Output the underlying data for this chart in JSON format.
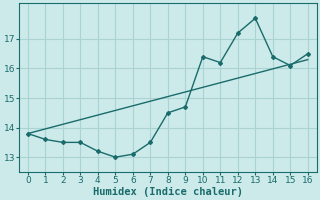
{
  "xlabel": "Humidex (Indice chaleur)",
  "x": [
    0,
    1,
    2,
    3,
    4,
    5,
    6,
    7,
    8,
    9,
    10,
    11,
    12,
    13,
    14,
    15,
    16
  ],
  "y_curve": [
    13.8,
    13.6,
    13.5,
    13.5,
    13.2,
    13.0,
    13.1,
    13.5,
    14.5,
    14.7,
    16.4,
    16.2,
    17.2,
    17.7,
    16.4,
    16.1,
    16.5
  ],
  "y_trend_start": 13.8,
  "y_trend_end": 16.3,
  "line_color": "#1a6b6b",
  "background_color": "#cceaea",
  "grid_color": "#aad4d4",
  "ylim": [
    12.5,
    18.2
  ],
  "xlim": [
    -0.5,
    16.5
  ],
  "yticks": [
    13,
    14,
    15,
    16,
    17
  ],
  "xticks": [
    0,
    1,
    2,
    3,
    4,
    5,
    6,
    7,
    8,
    9,
    10,
    11,
    12,
    13,
    14,
    15,
    16
  ],
  "tick_fontsize": 6.5,
  "xlabel_fontsize": 7.5
}
